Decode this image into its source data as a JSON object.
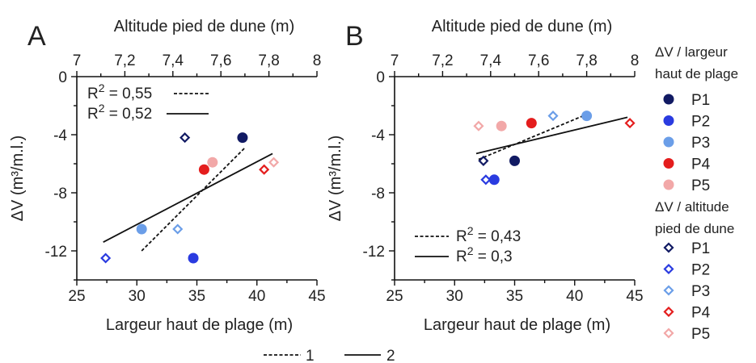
{
  "chart_data": [
    {
      "panel": "A",
      "type": "scatter",
      "xlabel": "Largeur haut de plage (m)",
      "x2label": "Altitude pied de dune (m)",
      "ylabel": "ΔV (m³/m.l.)",
      "xlim": [
        25,
        45
      ],
      "x2lim": [
        7,
        8
      ],
      "ylim": [
        -14,
        0
      ],
      "xticks": [
        "25",
        "30",
        "35",
        "40",
        "45"
      ],
      "x2ticks": [
        "7",
        "7,2",
        "7,4",
        "7,6",
        "7,8",
        "8"
      ],
      "yticks": [
        "0",
        "-4",
        "-8",
        "-12"
      ],
      "points_largeur": [
        {
          "profile": "P1",
          "x": 38.8,
          "y": -4.2
        },
        {
          "profile": "P2",
          "x": 34.7,
          "y": -12.5
        },
        {
          "profile": "P3",
          "x": 30.4,
          "y": -10.5
        },
        {
          "profile": "P4",
          "x": 35.6,
          "y": -6.4
        },
        {
          "profile": "P5",
          "x": 36.3,
          "y": -5.9
        }
      ],
      "points_altitude": [
        {
          "profile": "P1",
          "x": 7.45,
          "y": -4.2
        },
        {
          "profile": "P2",
          "x": 7.12,
          "y": -12.5
        },
        {
          "profile": "P3",
          "x": 7.42,
          "y": -10.5
        },
        {
          "profile": "P4",
          "x": 7.78,
          "y": -6.4
        },
        {
          "profile": "P5",
          "x": 7.82,
          "y": -5.9
        }
      ],
      "fit_dashed": {
        "x_range": [
          7.27,
          7.7
        ],
        "y_range": [
          -12,
          -4.9
        ]
      },
      "fit_solid": {
        "x_range": [
          27.2,
          41.3
        ],
        "y_range": [
          -11.4,
          -5.3
        ]
      },
      "legend": [
        {
          "style": "dashed",
          "label": "R",
          "sup": "2",
          "value": "= 0,55"
        },
        {
          "style": "solid",
          "label": "R",
          "sup": "2",
          "value": "= 0,52"
        }
      ]
    },
    {
      "panel": "B",
      "type": "scatter",
      "xlabel": "Largeur haut de plage (m)",
      "x2label": "Altitude pied de dune (m)",
      "ylabel": "ΔV (m³/m.l.)",
      "xlim": [
        25,
        45
      ],
      "x2lim": [
        7,
        8
      ],
      "ylim": [
        -14,
        0
      ],
      "xticks": [
        "25",
        "30",
        "35",
        "40",
        "45"
      ],
      "x2ticks": [
        "7",
        "7,2",
        "7,4",
        "7,6",
        "7,8",
        "8"
      ],
      "yticks": [
        "0",
        "-4",
        "-8",
        "-12"
      ],
      "points_largeur": [
        {
          "profile": "P1",
          "x": 35.0,
          "y": -5.8
        },
        {
          "profile": "P2",
          "x": 33.3,
          "y": -7.1
        },
        {
          "profile": "P3",
          "x": 41.0,
          "y": -2.7
        },
        {
          "profile": "P4",
          "x": 36.4,
          "y": -3.2
        },
        {
          "profile": "P5",
          "x": 33.9,
          "y": -3.4
        }
      ],
      "points_altitude": [
        {
          "profile": "P1",
          "x": 7.37,
          "y": -5.8
        },
        {
          "profile": "P2",
          "x": 7.38,
          "y": -7.1
        },
        {
          "profile": "P3",
          "x": 7.66,
          "y": -2.7
        },
        {
          "profile": "P4",
          "x": 7.98,
          "y": -3.2
        },
        {
          "profile": "P5",
          "x": 7.35,
          "y": -3.4
        }
      ],
      "fit_dashed": {
        "x_range": [
          7.35,
          7.8
        ],
        "y_range": [
          -5.7,
          -2.6
        ]
      },
      "fit_solid": {
        "x_range": [
          31.8,
          44.4
        ],
        "y_range": [
          -5.3,
          -2.8
        ]
      },
      "legend": [
        {
          "style": "dashed",
          "label": "R",
          "sup": "2",
          "value": "= 0,43"
        },
        {
          "style": "solid",
          "label": "R",
          "sup": "2",
          "value": "= 0,3"
        }
      ]
    }
  ],
  "colors": {
    "P1": "#111a63",
    "P2": "#2a3be0",
    "P3": "#6b9ee8",
    "P4": "#e41d1d",
    "P5": "#f2a8a8"
  },
  "legend": {
    "group1_title": [
      "ΔV / largeur",
      "haut de plage"
    ],
    "group2_title": [
      "ΔV / altitude",
      "pied de dune"
    ],
    "items": [
      "P1",
      "P2",
      "P3",
      "P4",
      "P5"
    ],
    "bottom": [
      {
        "style": "dashed",
        "label": "1"
      },
      {
        "style": "solid",
        "label": "2"
      }
    ]
  }
}
